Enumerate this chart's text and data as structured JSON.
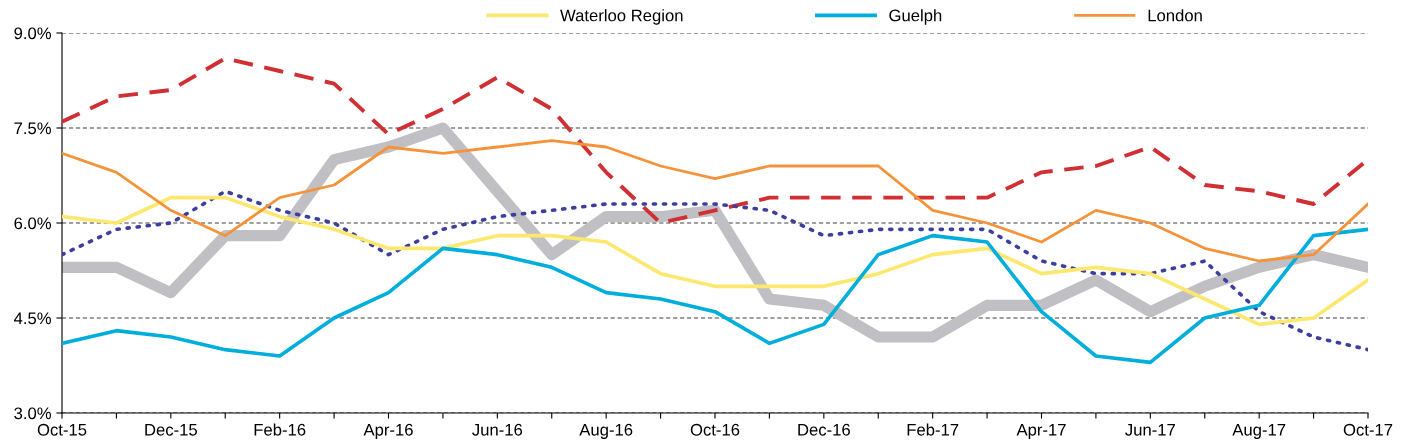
{
  "chart_data": {
    "type": "line",
    "categories": [
      "Oct-15",
      null,
      "Dec-15",
      null,
      "Feb-16",
      null,
      "Apr-16",
      null,
      "Jun-16",
      null,
      "Aug-16",
      null,
      "Oct-16",
      null,
      "Dec-16",
      null,
      "Feb-17",
      null,
      "Apr-17",
      null,
      "Jun-17",
      null,
      "Aug-17",
      null,
      "Oct-17"
    ],
    "series": [
      {
        "color": "#c0c0c4",
        "line_style": "solid",
        "values": [
          5.3,
          5.3,
          4.9,
          5.8,
          5.8,
          7.0,
          7.2,
          7.5,
          6.5,
          5.5,
          6.1,
          6.1,
          6.2,
          4.8,
          4.7,
          4.2,
          4.2,
          4.7,
          4.7,
          5.1,
          4.6,
          5.0,
          5.3,
          5.5,
          5.3
        ]
      },
      {
        "color": "#d02f33",
        "line_style": "dashed",
        "values": [
          7.6,
          8.0,
          8.1,
          8.6,
          8.4,
          8.2,
          7.4,
          7.8,
          8.3,
          7.8,
          6.8,
          6.0,
          6.2,
          6.4,
          6.4,
          6.4,
          6.4,
          6.4,
          6.8,
          6.9,
          7.2,
          6.6,
          6.5,
          6.3,
          7.0
        ]
      },
      {
        "color": "#3c3f9e",
        "line_style": "dotted",
        "values": [
          5.5,
          5.9,
          6.0,
          6.5,
          6.2,
          6.0,
          5.5,
          5.9,
          6.1,
          6.2,
          6.3,
          6.3,
          6.3,
          6.2,
          5.8,
          5.9,
          5.9,
          5.9,
          5.4,
          5.2,
          5.2,
          5.4,
          4.6,
          4.2,
          4.0
        ]
      },
      {
        "name": "Waterloo Region",
        "color": "#fde86f",
        "line_style": "solid",
        "values": [
          6.1,
          6.0,
          6.4,
          6.4,
          6.1,
          5.9,
          5.6,
          5.6,
          5.8,
          5.8,
          5.7,
          5.2,
          5.0,
          5.0,
          5.0,
          5.2,
          5.5,
          5.6,
          5.2,
          5.3,
          5.2,
          4.8,
          4.4,
          4.5,
          5.1
        ]
      },
      {
        "name": "Guelph",
        "color": "#00aedb",
        "line_style": "solid",
        "values": [
          4.1,
          4.3,
          4.2,
          4.0,
          3.9,
          4.5,
          4.9,
          5.6,
          5.5,
          5.3,
          4.9,
          4.8,
          4.6,
          4.1,
          4.4,
          5.5,
          5.8,
          5.7,
          4.6,
          3.9,
          3.8,
          4.5,
          4.7,
          5.8,
          5.9
        ]
      },
      {
        "name": "London",
        "color": "#f5933a",
        "line_style": "solid",
        "values": [
          7.1,
          6.8,
          6.2,
          5.8,
          6.4,
          6.6,
          7.2,
          7.1,
          7.2,
          7.3,
          7.2,
          6.9,
          6.7,
          6.9,
          6.9,
          6.9,
          6.2,
          6.0,
          5.7,
          6.2,
          6.0,
          5.6,
          5.4,
          5.5,
          6.3
        ]
      }
    ],
    "ylim": [
      3.0,
      9.0
    ],
    "yticks": [
      {
        "value": 3.0,
        "label": "3.0%"
      },
      {
        "value": 4.5,
        "label": "4.5%"
      },
      {
        "value": 6.0,
        "label": "6.0%"
      },
      {
        "value": 7.5,
        "label": "7.5%"
      },
      {
        "value": 9.0,
        "label": "9.0%"
      }
    ],
    "grid": "y",
    "legend": "top",
    "marker": "none"
  }
}
